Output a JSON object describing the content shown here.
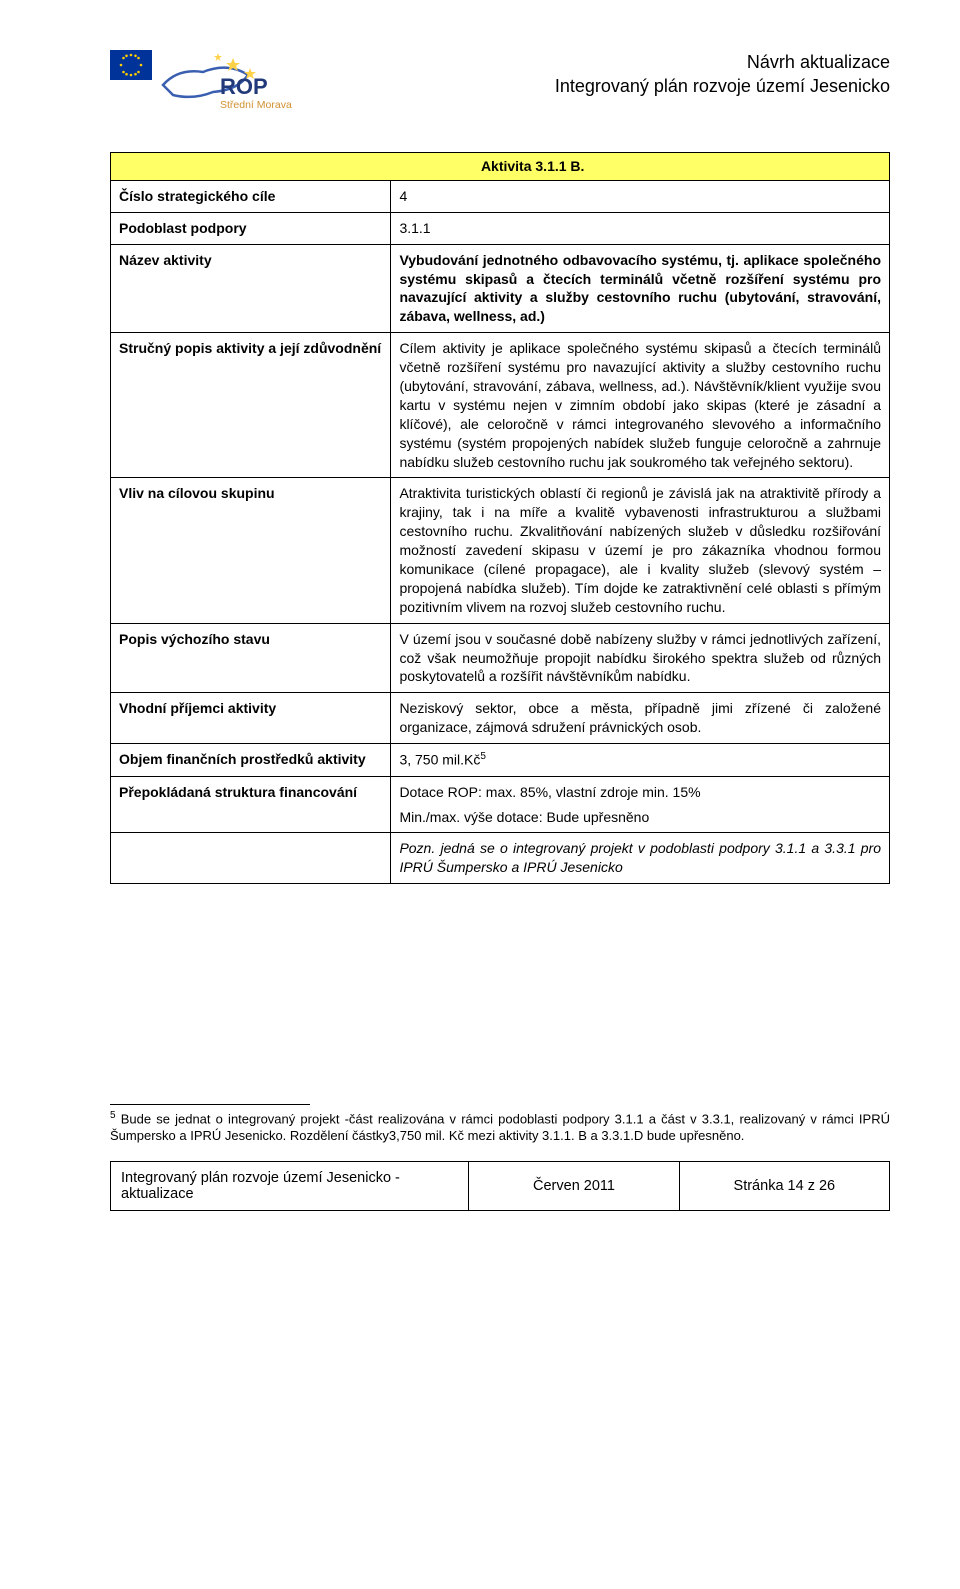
{
  "header": {
    "line1": "Návrh aktualizace",
    "line2": "Integrovaný plán rozvoje území Jesenicko"
  },
  "logo": {
    "eu_flag": {
      "bg": "#003399",
      "star": "#ffcc00"
    },
    "rop_text_top": "ROP",
    "rop_text_bottom": "Střední Morava",
    "map_color": "#3a5fb0",
    "star_color": "#ffd24a"
  },
  "table": {
    "title": "Aktivita 3.1.1 B.",
    "title_bg": "#ffff66",
    "rows": [
      {
        "label": "Číslo strategického cíle",
        "value": "4"
      },
      {
        "label": "Podoblast podpory",
        "value": "3.1.1"
      },
      {
        "label": "Název aktivity",
        "value_html": "Vybudování jednotného odbavovacího systému, tj. aplikace společného systému skipasů a čtecích terminálů včetně rozšíření systému pro navazující aktivity a služby cestovního ruchu (ubytování, stravování, zábava, wellness, ad.)",
        "bold": true
      },
      {
        "label": "Stručný popis aktivity a její zdůvodnění",
        "value_html": "Cílem aktivity je aplikace společného systému skipasů a čtecích terminálů včetně rozšíření systému pro navazující aktivity a služby cestovního ruchu (ubytování, stravování, zábava, wellness, ad.). Návštěvník/klient využije svou kartu v systému nejen v zimním období jako skipas (které je zásadní a klíčové), ale celoročně v rámci integrovaného slevového a informačního systému (systém propojených nabídek služeb funguje celoročně a zahrnuje nabídku služeb cestovního ruchu jak soukromého tak veřejného sektoru)."
      },
      {
        "label": "Vliv na cílovou skupinu",
        "value_html": "Atraktivita turistických oblastí či regionů je závislá jak na atraktivitě přírody a krajiny, tak i na míře a kvalitě vybavenosti infrastrukturou a službami cestovního ruchu. Zkvalitňování nabízených služeb v důsledku rozšiřování možností zavedení skipasu v území je pro zákazníka vhodnou formou komunikace (cílené propagace), ale i kvality služeb (slevový systém – propojená nabídka služeb). Tím dojde ke zatraktivnění celé oblasti s přímým pozitivním vlivem na rozvoj služeb cestovního ruchu."
      },
      {
        "label": "Popis výchozího stavu",
        "value_html": "V území jsou v současné době nabízeny  služby  v rámci jednotlivých zařízení, což však neumožňuje propojit nabídku širokého spektra služeb od různých poskytovatelů a rozšířit návštěvníkům nabídku."
      },
      {
        "label": "Vhodní příjemci aktivity",
        "value_html": "Neziskový sektor, obce a města, případně jimi zřízené či založené organizace, zájmová sdružení právnických osob."
      },
      {
        "label": "Objem finančních prostředků aktivity",
        "value_html": "3, 750  mil.Kč",
        "sup": "5"
      },
      {
        "label": "Přepokládaná struktura financování",
        "value_html": "Dotace ROP: max. 85%, vlastní zdroje min. 15%|Min./max. výše dotace: Bude upřesněno"
      },
      {
        "label": "",
        "value_html": "Pozn. jedná se o integrovaný projekt v podoblasti podpory 3.1.1 a 3.3.1 pro IPRÚ Šumpersko a IPRÚ Jesenicko",
        "italic": true
      }
    ]
  },
  "footnote": {
    "num": "5",
    "text": " Bude se jednat o integrovaný projekt -část realizována v rámci podoblasti podpory 3.1.1 a část v 3.3.1, realizovaný  v rámci IPRÚ Šumpersko a IPRÚ Jesenicko. Rozdělení částky3,750 mil. Kč mezi aktivity 3.1.1. B a 3.3.1.D bude upřesněno."
  },
  "footer": {
    "left": "Integrovaný plán rozvoje území Jesenicko - aktualizace",
    "mid": "Červen 2011",
    "right": "Stránka 14 z 26"
  }
}
